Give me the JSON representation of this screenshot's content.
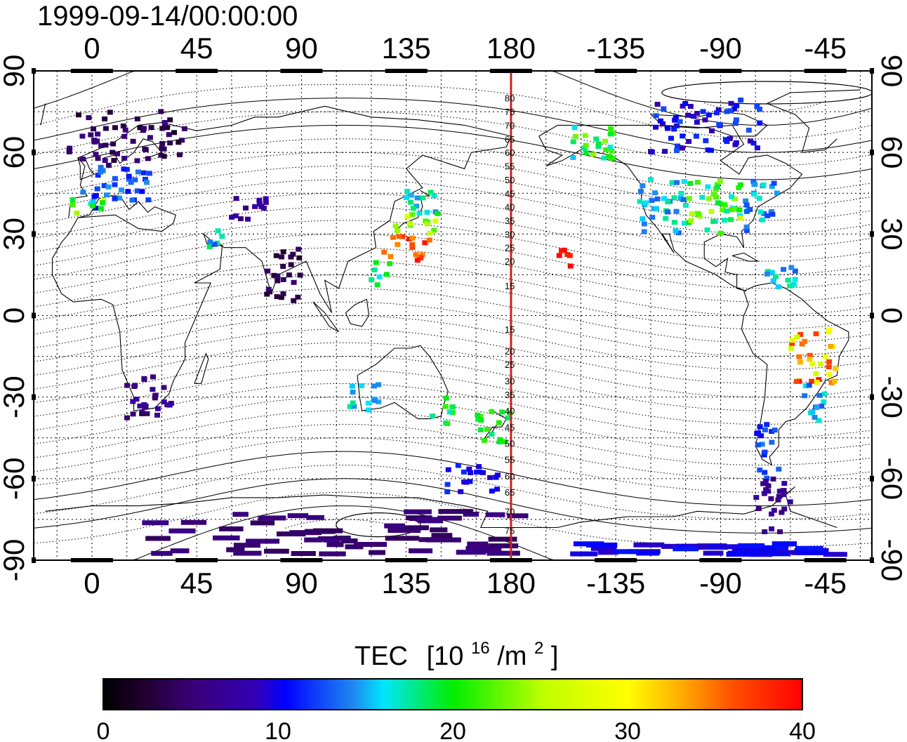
{
  "timestamp": "1999-09-14/00:00:00",
  "map": {
    "lon_ticks_top": [
      "0",
      "45",
      "90",
      "135",
      "180",
      "-135",
      "-90",
      "-45"
    ],
    "lon_ticks_bottom": [
      "0",
      "45",
      "90",
      "135",
      "180",
      "-135",
      "-90",
      "-45"
    ],
    "lat_ticks_left": [
      "90",
      "60",
      "30",
      "0",
      "-30",
      "-60",
      "-90"
    ],
    "lat_ticks_right": [
      "90",
      "60",
      "30",
      "0",
      "-30",
      "-60",
      "-90"
    ],
    "lon_tick_values": [
      0,
      45,
      90,
      135,
      180,
      225,
      270,
      315
    ],
    "lat_tick_values": [
      90,
      60,
      30,
      0,
      -30,
      -60,
      -90
    ],
    "lon_range": [
      -25,
      335
    ],
    "lat_range": [
      -90,
      90
    ],
    "grid": "dotted, every 15 degrees",
    "meridian_line": {
      "lon": 180,
      "color": "#cc2222"
    },
    "contour_labels": [
      "80",
      "75",
      "70",
      "65",
      "60",
      "55",
      "50",
      "45",
      "40",
      "35",
      "30",
      "25",
      "20",
      "15",
      "15",
      "20",
      "25",
      "30",
      "35",
      "40",
      "45",
      "50",
      "55",
      "60",
      "65",
      "70",
      "75"
    ],
    "contour_label_lats": [
      80,
      75,
      70,
      65,
      60,
      55,
      50,
      45,
      40,
      35,
      30,
      25,
      20,
      11,
      -5,
      -13,
      -18,
      -24,
      -29,
      -35,
      -41,
      -47,
      -53,
      -59,
      -65,
      -72,
      -79
    ]
  },
  "colorbar": {
    "title": "TEC",
    "unit_main": "[10",
    "unit_sup": "16",
    "unit_mid": "/m",
    "unit_sup2": "2",
    "unit_end": "]",
    "ticks": [
      "0",
      "10",
      "20",
      "30",
      "40"
    ],
    "tick_values": [
      0,
      10,
      20,
      30,
      40
    ],
    "range": [
      0,
      40
    ]
  },
  "tec_regions": [
    {
      "name": "europe-north",
      "lon": [
        -10,
        40
      ],
      "lat": [
        55,
        75
      ],
      "tec": [
        2,
        6
      ]
    },
    {
      "name": "europe-central",
      "lon": [
        -5,
        25
      ],
      "lat": [
        42,
        55
      ],
      "tec": [
        10,
        15
      ]
    },
    {
      "name": "iberia",
      "lon": [
        -10,
        5
      ],
      "lat": [
        36,
        44
      ],
      "tec": [
        9,
        32
      ]
    },
    {
      "name": "central-asia",
      "lon": [
        60,
        75
      ],
      "lat": [
        35,
        45
      ],
      "tec": [
        5,
        8
      ]
    },
    {
      "name": "middle-east",
      "lon": [
        50,
        60
      ],
      "lat": [
        25,
        32
      ],
      "tec": [
        12,
        20
      ]
    },
    {
      "name": "india",
      "lon": [
        75,
        90
      ],
      "lat": [
        5,
        25
      ],
      "tec": [
        2,
        5
      ]
    },
    {
      "name": "japan-north",
      "lon": [
        135,
        150
      ],
      "lat": [
        35,
        46
      ],
      "tec": [
        14,
        20
      ]
    },
    {
      "name": "japan-central",
      "lon": [
        130,
        148
      ],
      "lat": [
        30,
        38
      ],
      "tec": [
        22,
        28
      ]
    },
    {
      "name": "japan-south",
      "lon": [
        125,
        145
      ],
      "lat": [
        20,
        30
      ],
      "tec": [
        33,
        40
      ]
    },
    {
      "name": "philippines",
      "lon": [
        120,
        128
      ],
      "lat": [
        10,
        20
      ],
      "tec": [
        14,
        22
      ]
    },
    {
      "name": "hawaii",
      "lon": [
        200,
        206
      ],
      "lat": [
        18,
        24
      ],
      "tec": [
        38,
        40
      ]
    },
    {
      "name": "alaska",
      "lon": [
        205,
        225
      ],
      "lat": [
        57,
        70
      ],
      "tec": [
        14,
        24
      ]
    },
    {
      "name": "canada-north",
      "lon": [
        240,
        290
      ],
      "lat": [
        60,
        80
      ],
      "tec": [
        8,
        13
      ]
    },
    {
      "name": "us-west",
      "lon": [
        235,
        255
      ],
      "lat": [
        30,
        50
      ],
      "tec": [
        13,
        18
      ]
    },
    {
      "name": "us-central",
      "lon": [
        255,
        280
      ],
      "lat": [
        30,
        50
      ],
      "tec": [
        16,
        26
      ]
    },
    {
      "name": "us-east",
      "lon": [
        280,
        295
      ],
      "lat": [
        30,
        50
      ],
      "tec": [
        12,
        17
      ]
    },
    {
      "name": "caribbean",
      "lon": [
        290,
        305
      ],
      "lat": [
        10,
        20
      ],
      "tec": [
        13,
        18
      ]
    },
    {
      "name": "brazil",
      "lon": [
        300,
        320
      ],
      "lat": [
        -25,
        -5
      ],
      "tec": [
        26,
        40
      ]
    },
    {
      "name": "south-america-east",
      "lon": [
        305,
        315
      ],
      "lat": [
        -40,
        -25
      ],
      "tec": [
        12,
        17
      ]
    },
    {
      "name": "patagonia",
      "lon": [
        285,
        295
      ],
      "lat": [
        -60,
        -40
      ],
      "tec": [
        10,
        14
      ]
    },
    {
      "name": "antarctic-peninsula",
      "lon": [
        285,
        300
      ],
      "lat": [
        -80,
        -60
      ],
      "tec": [
        5,
        8
      ]
    },
    {
      "name": "south-africa",
      "lon": [
        15,
        35
      ],
      "lat": [
        -38,
        -22
      ],
      "tec": [
        4,
        8
      ]
    },
    {
      "name": "australia-west",
      "lon": [
        110,
        125
      ],
      "lat": [
        -35,
        -25
      ],
      "tec": [
        14,
        18
      ]
    },
    {
      "name": "australia-east",
      "lon": [
        145,
        155
      ],
      "lat": [
        -40,
        -30
      ],
      "tec": [
        16,
        22
      ]
    },
    {
      "name": "new-zealand",
      "lon": [
        165,
        180
      ],
      "lat": [
        -48,
        -35
      ],
      "tec": [
        18,
        22
      ]
    },
    {
      "name": "southern-ocean",
      "lon": [
        150,
        175
      ],
      "lat": [
        -65,
        -55
      ],
      "tec": [
        9,
        12
      ]
    },
    {
      "name": "antarctica",
      "lon": [
        20,
        180
      ],
      "lat": [
        -88,
        -72
      ],
      "tec": [
        4,
        6
      ]
    },
    {
      "name": "antarctica-west",
      "lon": [
        205,
        320
      ],
      "lat": [
        -88,
        -84
      ],
      "tec": [
        9,
        11
      ]
    }
  ]
}
